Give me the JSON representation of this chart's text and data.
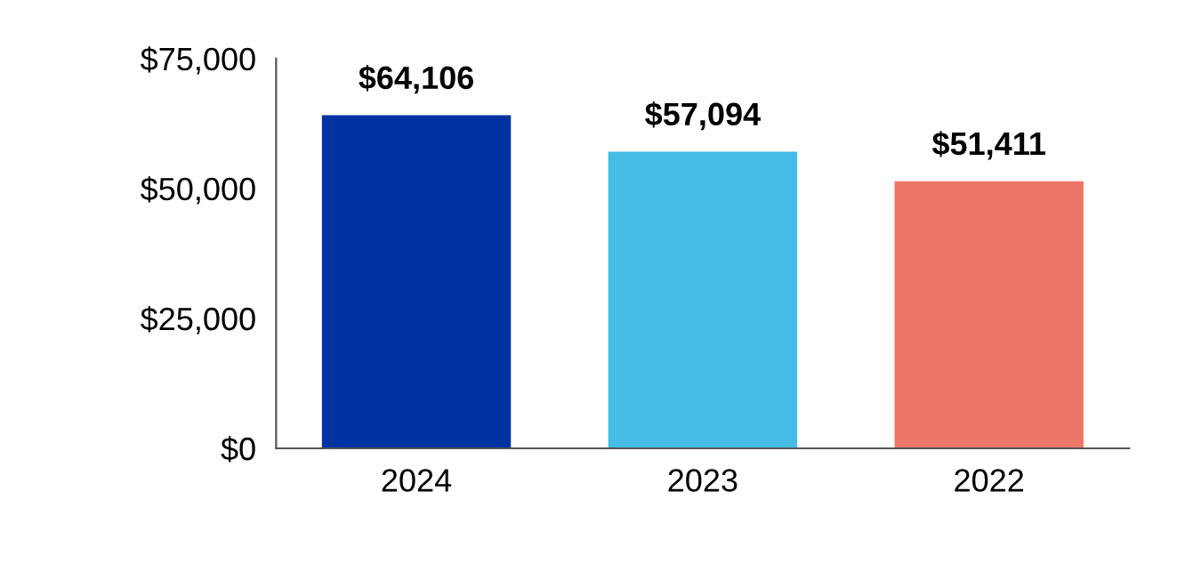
{
  "chart_data": {
    "type": "bar",
    "categories": [
      "2024",
      "2023",
      "2022"
    ],
    "values": [
      64106,
      57094,
      51411
    ],
    "colors": [
      "#0033a1",
      "#45bbe5",
      "#ec7667"
    ],
    "value_labels": [
      "$64,106",
      "$57,094",
      "$51,411"
    ],
    "ylim": [
      0,
      75000
    ],
    "yticks": [
      {
        "value": 0,
        "label": "$0"
      },
      {
        "value": 25000,
        "label": "$25,000"
      },
      {
        "value": 50000,
        "label": "$50,000"
      },
      {
        "value": 75000,
        "label": "$75,000"
      }
    ],
    "grid": false,
    "legend": false
  }
}
